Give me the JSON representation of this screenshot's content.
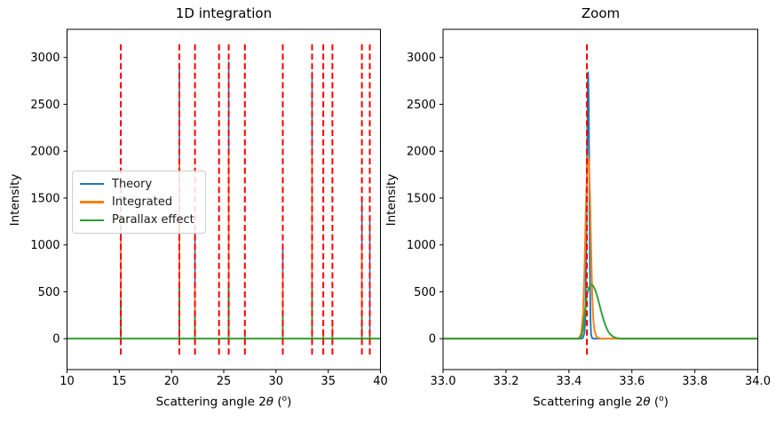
{
  "figure": {
    "background": "#ffffff",
    "colors": {
      "theory": "#1f77b4",
      "integrated": "#ff7f0e",
      "parallax": "#2ca02c",
      "ring_line": "#ff0000",
      "axes": "#000000"
    },
    "ylabel": "Intensity",
    "xlabel_parts": {
      "prefix": "Scattering angle 2",
      "theta": "θ",
      "paren_open": " (",
      "superscript": "o",
      "paren_close": ")"
    },
    "legend": {
      "entries": [
        {
          "label": "Theory",
          "color_key": "theory"
        },
        {
          "label": "Integrated",
          "color_key": "integrated"
        },
        {
          "label": "Parallax effect",
          "color_key": "parallax"
        }
      ]
    }
  },
  "chart_data": [
    {
      "type": "line",
      "title": "1D integration",
      "xlabel": "Scattering angle 2θ (°)",
      "ylabel": "Intensity",
      "xlim": [
        10,
        40
      ],
      "ylim": [
        -330,
        3300
      ],
      "grid": false,
      "legend_position": "center left",
      "xticks": [
        {
          "v": 10,
          "label": "10"
        },
        {
          "v": 15,
          "label": "15"
        },
        {
          "v": 20,
          "label": "20"
        },
        {
          "v": 25,
          "label": "25"
        },
        {
          "v": 30,
          "label": "30"
        },
        {
          "v": 35,
          "label": "35"
        },
        {
          "v": 40,
          "label": "40"
        }
      ],
      "yticks": [
        {
          "v": 0,
          "label": "0"
        },
        {
          "v": 500,
          "label": "500"
        },
        {
          "v": 1000,
          "label": "1000"
        },
        {
          "v": 1500,
          "label": "1500"
        },
        {
          "v": 2000,
          "label": "2000"
        },
        {
          "v": 2500,
          "label": "2500"
        },
        {
          "v": 3000,
          "label": "3000"
        }
      ],
      "vlines": {
        "style": "dashed",
        "color_key": "ring_line",
        "span": [
          -170,
          3140
        ],
        "x": [
          15.15,
          20.75,
          22.25,
          24.55,
          25.48,
          27.02,
          30.65,
          33.46,
          34.53,
          35.4,
          38.22,
          38.98
        ]
      },
      "series_names": [
        "Theory",
        "Integrated",
        "Parallax effect"
      ],
      "peaks": [
        {
          "x": 15.15,
          "theory": 1200,
          "integrated": 1050,
          "parallax": 415
        },
        {
          "x": 20.75,
          "theory": 2880,
          "integrated": 1880,
          "parallax": 600
        },
        {
          "x": 22.25,
          "theory": 1150,
          "integrated": 600,
          "parallax": 275
        },
        {
          "x": 25.48,
          "theory": 2960,
          "integrated": 2000,
          "parallax": 580
        },
        {
          "x": 27.02,
          "theory": 40,
          "integrated": 12,
          "parallax": 5
        },
        {
          "x": 30.65,
          "theory": 980,
          "integrated": 710,
          "parallax": 270
        },
        {
          "x": 33.46,
          "theory": 2850,
          "integrated": 1950,
          "parallax": 570
        },
        {
          "x": 34.53,
          "theory": 100,
          "integrated": 60,
          "parallax": 20
        },
        {
          "x": 35.4,
          "theory": 180,
          "integrated": 130,
          "parallax": 35
        },
        {
          "x": 38.22,
          "theory": 1500,
          "integrated": 1000,
          "parallax": 285
        },
        {
          "x": 38.98,
          "theory": 1300,
          "integrated": 15,
          "parallax": 50
        }
      ]
    },
    {
      "type": "line",
      "title": "Zoom",
      "xlabel": "Scattering angle 2θ (°)",
      "ylabel": "Intensity",
      "xlim": [
        33.0,
        34.0
      ],
      "ylim": [
        -330,
        3300
      ],
      "grid": false,
      "xticks": [
        {
          "v": 33.0,
          "label": "33.0"
        },
        {
          "v": 33.2,
          "label": "33.2"
        },
        {
          "v": 33.4,
          "label": "33.4"
        },
        {
          "v": 33.6,
          "label": "33.6"
        },
        {
          "v": 33.8,
          "label": "33.8"
        },
        {
          "v": 34.0,
          "label": "34.0"
        }
      ],
      "yticks": [
        {
          "v": 0,
          "label": "0"
        },
        {
          "v": 500,
          "label": "500"
        },
        {
          "v": 1000,
          "label": "1000"
        },
        {
          "v": 1500,
          "label": "1500"
        },
        {
          "v": 2000,
          "label": "2000"
        },
        {
          "v": 2500,
          "label": "2500"
        },
        {
          "v": 3000,
          "label": "3000"
        }
      ],
      "vlines": {
        "style": "dashed",
        "color_key": "ring_line",
        "span": [
          -170,
          3140
        ],
        "x": [
          33.457
        ]
      },
      "series": [
        {
          "name": "Theory",
          "color_key": "theory",
          "points": [
            [
              33.0,
              0
            ],
            [
              33.435,
              0
            ],
            [
              33.444,
              5
            ],
            [
              33.449,
              60
            ],
            [
              33.452,
              200
            ],
            [
              33.455,
              900
            ],
            [
              33.4575,
              1900
            ],
            [
              33.4595,
              2600
            ],
            [
              33.461,
              2841
            ],
            [
              33.4625,
              2600
            ],
            [
              33.4645,
              1700
            ],
            [
              33.4665,
              700
            ],
            [
              33.4685,
              180
            ],
            [
              33.4705,
              40
            ],
            [
              33.474,
              5
            ],
            [
              33.48,
              0
            ],
            [
              34.0,
              0
            ]
          ]
        },
        {
          "name": "Integrated",
          "color_key": "integrated",
          "points": [
            [
              33.0,
              0
            ],
            [
              33.425,
              0
            ],
            [
              33.433,
              10
            ],
            [
              33.439,
              60
            ],
            [
              33.4445,
              250
            ],
            [
              33.449,
              700
            ],
            [
              33.4535,
              1350
            ],
            [
              33.4575,
              1820
            ],
            [
              33.4605,
              1950
            ],
            [
              33.4635,
              1880
            ],
            [
              33.467,
              1500
            ],
            [
              33.4705,
              950
            ],
            [
              33.474,
              480
            ],
            [
              33.4775,
              200
            ],
            [
              33.4815,
              80
            ],
            [
              33.4865,
              25
            ],
            [
              33.4925,
              8
            ],
            [
              33.5,
              2
            ],
            [
              33.51,
              0
            ],
            [
              34.0,
              0
            ]
          ]
        },
        {
          "name": "Parallax effect",
          "color_key": "parallax",
          "points": [
            [
              33.0,
              0
            ],
            [
              33.43,
              0
            ],
            [
              33.4385,
              15
            ],
            [
              33.4435,
              80
            ],
            [
              33.4485,
              220
            ],
            [
              33.4535,
              380
            ],
            [
              33.4585,
              490
            ],
            [
              33.4635,
              545
            ],
            [
              33.4685,
              570
            ],
            [
              33.4735,
              575
            ],
            [
              33.4785,
              555
            ],
            [
              33.4855,
              500
            ],
            [
              33.4925,
              420
            ],
            [
              33.5,
              320
            ],
            [
              33.5075,
              230
            ],
            [
              33.515,
              150
            ],
            [
              33.5225,
              90
            ],
            [
              33.53,
              50
            ],
            [
              33.54,
              22
            ],
            [
              33.55,
              8
            ],
            [
              33.56,
              2
            ],
            [
              33.57,
              0
            ],
            [
              34.0,
              0
            ]
          ]
        }
      ]
    }
  ]
}
